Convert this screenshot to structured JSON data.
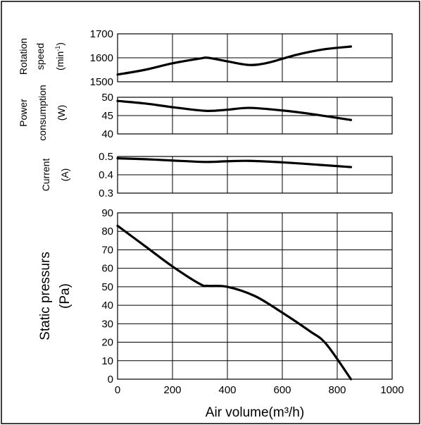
{
  "chart_data": [
    {
      "type": "line",
      "ylabel_lines": [
        "Rotation",
        "speed",
        "(min-1)"
      ],
      "ylim": [
        1500,
        1700
      ],
      "yticks": [
        "1500",
        "1600",
        "1700"
      ],
      "xlim": [
        0,
        1000
      ],
      "grid": true,
      "series": [
        {
          "x": [
            0,
            100,
            200,
            300,
            330,
            400,
            480,
            550,
            650,
            750,
            850
          ],
          "y": [
            1530,
            1550,
            1577,
            1597,
            1600,
            1585,
            1570,
            1580,
            1612,
            1635,
            1647
          ]
        }
      ]
    },
    {
      "type": "line",
      "ylabel_lines": [
        "Power",
        "consumption",
        "(W)"
      ],
      "ylim": [
        40,
        50
      ],
      "yticks": [
        "40",
        "45",
        "50"
      ],
      "xlim": [
        0,
        1000
      ],
      "grid": true,
      "series": [
        {
          "x": [
            0,
            100,
            200,
            320,
            400,
            480,
            600,
            700,
            850
          ],
          "y": [
            49,
            48.3,
            47.3,
            46.3,
            46.6,
            47.1,
            46.4,
            45.5,
            43.8
          ]
        }
      ]
    },
    {
      "type": "line",
      "ylabel_lines": [
        "Current",
        "(A)"
      ],
      "ylim": [
        0.3,
        0.5
      ],
      "yticks": [
        "0.3",
        "0.4",
        "0.5"
      ],
      "xlim": [
        0,
        1000
      ],
      "grid": true,
      "series": [
        {
          "x": [
            0,
            100,
            200,
            320,
            400,
            480,
            600,
            700,
            850
          ],
          "y": [
            0.49,
            0.485,
            0.478,
            0.47,
            0.474,
            0.476,
            0.468,
            0.458,
            0.442
          ]
        }
      ]
    },
    {
      "type": "line",
      "ylabel_lines": [
        "Static pressurs",
        "(Pa)"
      ],
      "ylim": [
        0,
        90
      ],
      "yticks": [
        "0",
        "10",
        "20",
        "30",
        "40",
        "50",
        "60",
        "70",
        "80",
        "90"
      ],
      "xlim": [
        0,
        1000
      ],
      "xticks": [
        "0",
        "200",
        "400",
        "600",
        "800",
        "1000"
      ],
      "xlabel": "Air volume(m³/h)",
      "grid": true,
      "series": [
        {
          "x": [
            0,
            100,
            200,
            300,
            330,
            400,
            500,
            600,
            700,
            760,
            850
          ],
          "y": [
            83,
            72,
            61,
            51.5,
            50.5,
            50,
            45,
            36,
            26,
            19,
            0
          ]
        }
      ]
    }
  ]
}
